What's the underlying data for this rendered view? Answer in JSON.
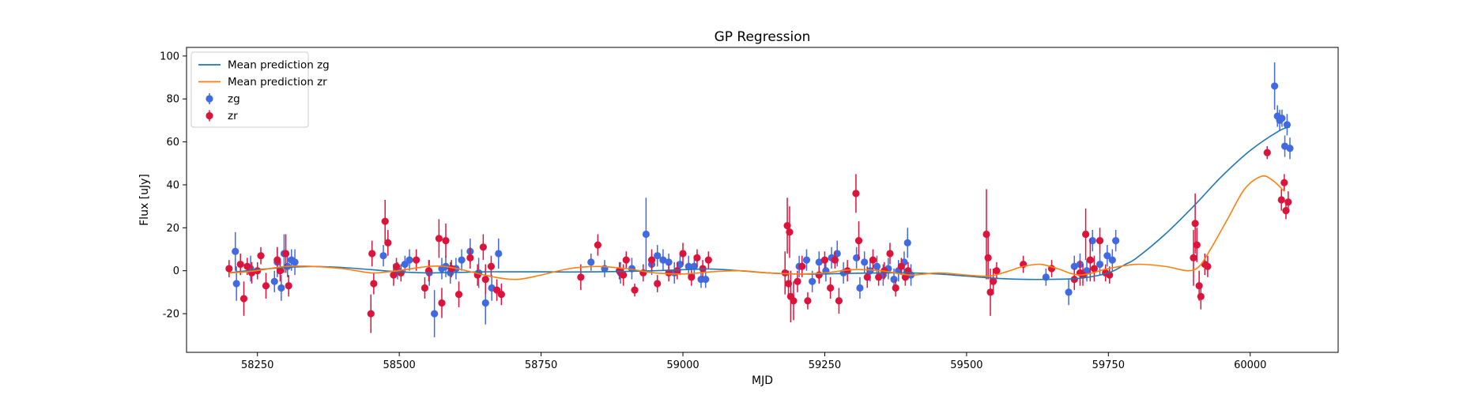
{
  "chart_data": {
    "type": "scatter",
    "title": "GP Regression",
    "xlabel": "MJD",
    "ylabel": "Flux [uJy]",
    "xlim": [
      58125,
      60155
    ],
    "ylim": [
      -38,
      104
    ],
    "xticks": [
      58250,
      58500,
      58750,
      59000,
      59250,
      59500,
      59750,
      60000
    ],
    "yticks": [
      -20,
      0,
      20,
      40,
      60,
      80,
      100
    ],
    "grid": false,
    "legend_position": "top-left",
    "colors": {
      "mean_zg": "#1f77b4",
      "mean_zr": "#ff7f0e",
      "zg": "#4169e1",
      "zr": "#dc143c"
    },
    "legend": [
      {
        "label": "Mean prediction zg",
        "kind": "line",
        "color": "#1f77b4"
      },
      {
        "label": "Mean prediction zr",
        "kind": "line",
        "color": "#ff7f0e"
      },
      {
        "label": "zg",
        "kind": "errorbar",
        "color": "#4169e1"
      },
      {
        "label": "zr",
        "kind": "errorbar",
        "color": "#dc143c"
      }
    ],
    "lines": [
      {
        "name": "Mean prediction zg",
        "x": [
          58200,
          58250,
          58300,
          58350,
          58400,
          58450,
          58500,
          58550,
          58600,
          58650,
          58700,
          58750,
          58800,
          58850,
          58900,
          58950,
          59000,
          59050,
          59100,
          59150,
          59200,
          59250,
          59300,
          59350,
          59400,
          59450,
          59500,
          59550,
          59600,
          59650,
          59700,
          59750,
          59780,
          59800,
          59850,
          59900,
          59950,
          60000,
          60050,
          60070
        ],
        "y": [
          -1,
          0.5,
          1.5,
          2,
          1.5,
          0.5,
          -0.5,
          -1,
          -0.8,
          -0.5,
          -0.5,
          -0.5,
          -0.6,
          -0.5,
          -0.3,
          0,
          0.5,
          0.8,
          0,
          -1,
          -1.5,
          -1.5,
          -1.2,
          -1,
          -1,
          -1.5,
          -2.5,
          -3.5,
          -4,
          -4,
          -3.5,
          -1,
          3,
          6,
          17,
          30,
          44,
          56,
          65,
          67
        ]
      },
      {
        "name": "Mean prediction zr",
        "x": [
          58200,
          58230,
          58260,
          58300,
          58350,
          58400,
          58450,
          58480,
          58510,
          58550,
          58580,
          58610,
          58650,
          58680,
          58710,
          58750,
          58800,
          58850,
          58900,
          58950,
          59000,
          59050,
          59100,
          59150,
          59200,
          59250,
          59300,
          59350,
          59400,
          59450,
          59500,
          59540,
          59570,
          59600,
          59630,
          59660,
          59700,
          59750,
          59800,
          59850,
          59890,
          59910,
          59930,
          59960,
          59990,
          60020,
          60040,
          60060
        ],
        "y": [
          -1,
          -0.5,
          0.5,
          2,
          2,
          1,
          -1,
          -0.5,
          0.5,
          2,
          2,
          0.5,
          -2,
          -3.5,
          -4,
          -2,
          1,
          2,
          1,
          -1,
          -1.5,
          -0.5,
          0,
          -1,
          -1.5,
          -1,
          0.5,
          0,
          -2,
          -1,
          -2,
          -2.5,
          -0.5,
          2,
          3,
          1,
          -2,
          1,
          3,
          2,
          0,
          2,
          10,
          24,
          38,
          44,
          42,
          37
        ]
      }
    ],
    "series": [
      {
        "name": "zg",
        "x": [
          58211,
          58213,
          58238,
          58280,
          58285,
          58292,
          58297,
          58303,
          58310,
          58316,
          58472,
          58497,
          58510,
          58518,
          58553,
          58562,
          58575,
          58582,
          58590,
          58600,
          58610,
          58625,
          58640,
          58652,
          58663,
          58675,
          58838,
          58862,
          58890,
          58910,
          58935,
          58945,
          58955,
          58965,
          58975,
          58985,
          58995,
          59010,
          59020,
          59032,
          59040,
          59205,
          59218,
          59228,
          59240,
          59252,
          59262,
          59272,
          59283,
          59306,
          59312,
          59320,
          59330,
          59342,
          59353,
          59362,
          59372,
          59380,
          59390,
          59396,
          59402,
          59640,
          59680,
          59690,
          59700,
          59712,
          59722,
          59735,
          59748,
          59757,
          59763,
          60043,
          60048,
          60052,
          60056,
          60061,
          60065,
          60070
        ],
        "y": [
          9,
          -6,
          1,
          -5,
          4,
          -8,
          8,
          2,
          5,
          4,
          7,
          0,
          3,
          5,
          -1,
          -20,
          1,
          2,
          -1,
          1,
          5,
          9,
          -1,
          -15,
          -8,
          8,
          4,
          1,
          -1,
          1,
          17,
          3,
          7,
          5,
          4,
          -1,
          3,
          2,
          2,
          -4,
          -4,
          2,
          5,
          -5,
          4,
          0,
          6,
          8,
          -1,
          6,
          -8,
          4,
          0,
          2,
          -2,
          1,
          -4,
          0,
          4,
          13,
          -2,
          -3,
          -10,
          2,
          3,
          0,
          14,
          3,
          7,
          5,
          14,
          86,
          72,
          70,
          71,
          58,
          68,
          57
        ],
        "err": [
          9,
          8,
          6,
          5,
          7,
          6,
          9,
          5,
          5,
          6,
          5,
          4,
          4,
          5,
          6,
          11,
          5,
          5,
          5,
          5,
          5,
          6,
          7,
          10,
          6,
          7,
          4,
          4,
          5,
          5,
          17,
          5,
          5,
          5,
          4,
          5,
          5,
          5,
          5,
          4,
          4,
          5,
          5,
          5,
          5,
          5,
          5,
          6,
          5,
          5,
          5,
          5,
          5,
          5,
          5,
          5,
          5,
          5,
          5,
          7,
          5,
          4,
          6,
          5,
          5,
          5,
          5,
          5,
          5,
          5,
          5,
          11,
          5,
          5,
          4,
          5,
          5,
          5
        ]
      },
      {
        "name": "zr",
        "x": [
          58200,
          58220,
          58226,
          58232,
          58240,
          58250,
          58256,
          58265,
          58285,
          58290,
          58300,
          58305,
          58450,
          58452,
          58455,
          58475,
          58480,
          58490,
          58495,
          58503,
          58530,
          58545,
          58552,
          58570,
          58575,
          58582,
          58592,
          58605,
          58625,
          58638,
          58648,
          58652,
          58662,
          58672,
          58680,
          58820,
          58850,
          58888,
          58895,
          58900,
          58915,
          58930,
          58945,
          58955,
          58975,
          58990,
          59000,
          59015,
          59025,
          59035,
          59045,
          59180,
          59184,
          59186,
          59188,
          59190,
          59195,
          59202,
          59210,
          59220,
          59240,
          59250,
          59260,
          59268,
          59275,
          59290,
          59305,
          59310,
          59325,
          59335,
          59345,
          59355,
          59365,
          59375,
          59385,
          59392,
          59397,
          59535,
          59538,
          59542,
          59547,
          59553,
          59600,
          59650,
          59690,
          59700,
          59705,
          59710,
          59718,
          59725,
          59735,
          59745,
          59752,
          59900,
          59903,
          59906,
          59910,
          59913,
          59920,
          59925,
          60030,
          60055,
          60060,
          60063,
          60067
        ],
        "y": [
          1,
          3,
          -13,
          2,
          -1,
          0,
          7,
          -7,
          5,
          0,
          8,
          -7,
          -20,
          8,
          -6,
          23,
          13,
          -2,
          2,
          -1,
          5,
          -8,
          0,
          15,
          -15,
          14,
          1,
          -11,
          6,
          -2,
          11,
          -4,
          2,
          -9,
          -11,
          -3,
          12,
          0,
          -2,
          5,
          -9,
          -1,
          5,
          -6,
          -1,
          0,
          8,
          -3,
          6,
          1,
          5,
          -1,
          21,
          -6,
          18,
          -12,
          -14,
          -5,
          2,
          -14,
          -2,
          5,
          -8,
          5,
          -14,
          0,
          36,
          14,
          -3,
          5,
          -3,
          0,
          8,
          -8,
          2,
          -3,
          0,
          17,
          6,
          -10,
          -5,
          0,
          3,
          1,
          -4,
          -1,
          -2,
          17,
          5,
          1,
          14,
          -1,
          -2,
          6,
          22,
          12,
          -7,
          -12,
          3,
          2,
          55,
          33,
          41,
          28,
          32
        ],
        "err": [
          4,
          5,
          8,
          4,
          5,
          4,
          4,
          6,
          6,
          5,
          9,
          5,
          9,
          6,
          5,
          10,
          6,
          5,
          4,
          4,
          5,
          5,
          5,
          9,
          7,
          8,
          4,
          6,
          5,
          5,
          6,
          7,
          5,
          5,
          5,
          6,
          5,
          4,
          5,
          4,
          3,
          4,
          5,
          4,
          4,
          4,
          5,
          4,
          4,
          4,
          4,
          10,
          13,
          6,
          12,
          12,
          9,
          5,
          5,
          4,
          4,
          4,
          5,
          4,
          6,
          5,
          9,
          9,
          5,
          5,
          4,
          4,
          5,
          4,
          4,
          4,
          4,
          21,
          10,
          11,
          6,
          4,
          4,
          4,
          5,
          6,
          5,
          12,
          10,
          6,
          6,
          4,
          4,
          13,
          14,
          8,
          7,
          6,
          5,
          5,
          3,
          5,
          4,
          4,
          5
        ]
      }
    ]
  }
}
